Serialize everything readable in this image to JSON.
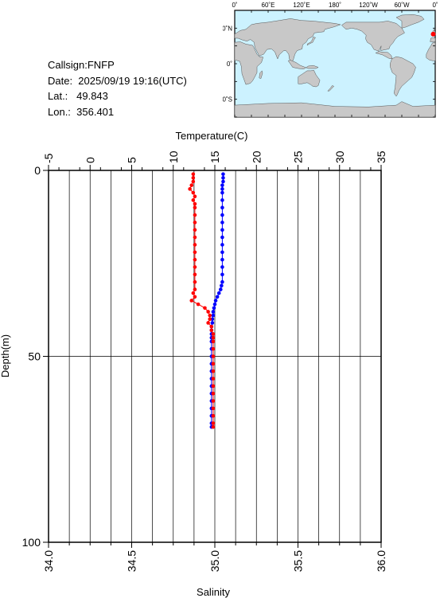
{
  "station": {
    "callsign": "Callsign:FNFP",
    "date": "Date:  2025/09/19 19:16(UTC)",
    "lat": "Lat.:   49.843",
    "lon": "Lon.:  356.401"
  },
  "map": {
    "lon_labels": [
      "0˚",
      "60˚E",
      "120˚E",
      "180˚",
      "120˚W",
      "60˚W",
      "0˚"
    ],
    "lat_labels": [
      "60˚N",
      "0˚",
      "60˚S"
    ],
    "colors": {
      "ocean": "#ccf2ff",
      "land": "#c8c8c8",
      "marker": "#ff0000"
    },
    "marker": {
      "lon": 356.401,
      "lat": 49.843
    }
  },
  "chart_data": {
    "type": "line",
    "top_axis": {
      "label": "Temperature(C)",
      "range": [
        -5,
        35
      ],
      "ticks": [
        "-5",
        "0",
        "5",
        "10",
        "15",
        "20",
        "25",
        "30",
        "35"
      ]
    },
    "bottom_axis": {
      "label": "Salinity",
      "range": [
        34.0,
        36.0
      ],
      "ticks": [
        "34.0",
        "34.5",
        "35.0",
        "35.5",
        "36.0"
      ]
    },
    "left_axis": {
      "label": "Depth(m)",
      "range": [
        0,
        100
      ],
      "inverted": true,
      "ticks": [
        "0",
        "50",
        "100"
      ]
    },
    "grid": true,
    "series": [
      {
        "variable": "temperature",
        "color": "#0000ff",
        "depth": [
          1,
          2,
          3,
          4,
          5,
          6,
          8,
          10,
          12,
          14,
          16,
          18,
          20,
          22,
          24,
          26,
          28,
          30,
          31,
          32,
          33,
          34,
          35,
          36,
          37,
          38,
          39,
          40,
          41,
          42,
          43,
          44,
          45,
          46,
          48,
          50,
          52,
          54,
          56,
          58,
          60,
          62,
          64,
          66,
          68,
          69
        ],
        "values": [
          16.0,
          16.0,
          16.0,
          15.9,
          15.9,
          15.9,
          15.9,
          15.9,
          15.9,
          15.9,
          15.9,
          15.9,
          15.9,
          15.9,
          15.9,
          15.9,
          15.9,
          15.9,
          15.8,
          15.7,
          15.5,
          15.3,
          15.1,
          15.0,
          14.9,
          14.8,
          14.8,
          14.7,
          14.7,
          14.6,
          14.6,
          14.6,
          14.6,
          14.6,
          14.6,
          14.6,
          14.6,
          14.6,
          14.6,
          14.6,
          14.6,
          14.6,
          14.6,
          14.6,
          14.6,
          14.6
        ]
      },
      {
        "variable": "salinity",
        "color": "#ff0000",
        "depth": [
          1,
          2,
          3,
          4,
          5,
          6,
          7,
          8,
          9,
          10,
          12,
          14,
          16,
          18,
          20,
          22,
          24,
          26,
          28,
          30,
          32,
          33,
          34,
          35,
          36,
          37,
          38,
          39,
          40,
          41,
          42,
          43,
          44,
          45,
          46,
          48,
          50,
          52,
          54,
          56,
          58,
          60,
          62,
          64,
          66,
          68,
          69
        ],
        "values": [
          34.87,
          34.87,
          34.87,
          34.86,
          34.85,
          34.87,
          34.88,
          34.87,
          34.88,
          34.88,
          34.88,
          34.88,
          34.88,
          34.88,
          34.88,
          34.88,
          34.88,
          34.88,
          34.88,
          34.88,
          34.88,
          34.87,
          34.88,
          34.86,
          34.9,
          34.94,
          34.96,
          34.97,
          34.97,
          34.96,
          34.98,
          34.98,
          34.99,
          34.99,
          34.99,
          34.99,
          34.99,
          34.99,
          34.99,
          34.99,
          34.99,
          34.99,
          34.99,
          34.99,
          34.99,
          34.99,
          34.99
        ]
      }
    ]
  }
}
